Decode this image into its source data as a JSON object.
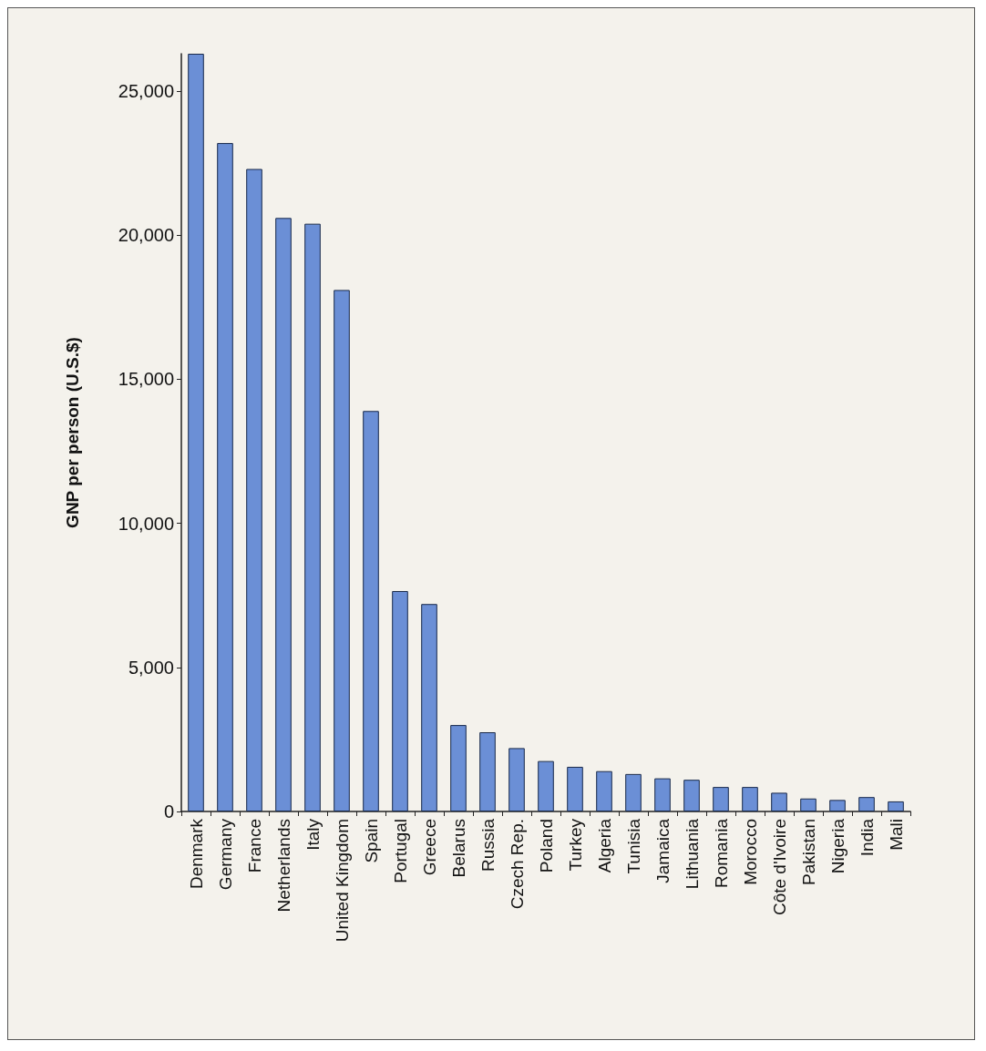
{
  "chart_data": {
    "type": "bar",
    "ylabel": "GNP per person (U.S.$)",
    "categories": [
      "Denmark",
      "Germany",
      "France",
      "Netherlands",
      "Italy",
      "United Kingdom",
      "Spain",
      "Portugal",
      "Greece",
      "Belarus",
      "Russia",
      "Czech Rep.",
      "Poland",
      "Turkey",
      "Algeria",
      "Tunisia",
      "Jamaica",
      "Lithuania",
      "Romania",
      "Morocco",
      "Côte d'Ivoire",
      "Pakistan",
      "Nigeria",
      "India",
      "Mali"
    ],
    "values": [
      26300,
      23200,
      22300,
      20600,
      20400,
      18100,
      13900,
      7650,
      7200,
      3000,
      2750,
      2200,
      1750,
      1550,
      1400,
      1300,
      1150,
      1100,
      850,
      850,
      650,
      450,
      400,
      500,
      350
    ],
    "color": "#6b8fd6",
    "ylim": [
      0,
      26300
    ],
    "yticks": [
      0,
      {
        "value": 5000,
        "label": "5,000"
      },
      {
        "value": 10000,
        "label": "10,000"
      },
      {
        "value": 15000,
        "label": "15,000"
      },
      {
        "value": 20000,
        "label": "20,000"
      },
      {
        "value": 25000,
        "label": "25,000"
      }
    ],
    "grid": false
  }
}
